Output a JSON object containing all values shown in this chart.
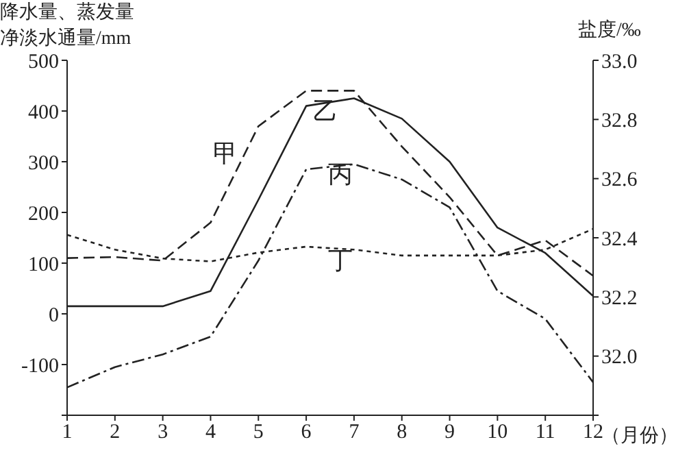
{
  "chart_data": {
    "type": "line",
    "ylabel": "降水量、蒸发量净淡水通量/mm",
    "y2label": "盐度/‰",
    "xlabel": "（月份）",
    "x": [
      1,
      2,
      3,
      4,
      5,
      6,
      7,
      8,
      9,
      10,
      11,
      12
    ],
    "series": [
      {
        "name": "甲",
        "color": "#222222",
        "line_style": "dashed",
        "values": [
          110,
          112,
          105,
          180,
          370,
          440,
          440,
          330,
          230,
          115,
          145,
          75
        ]
      },
      {
        "name": "乙",
        "color": "#222222",
        "line_style": "solid",
        "values": [
          15,
          15,
          15,
          45,
          225,
          410,
          425,
          385,
          300,
          170,
          120,
          35
        ]
      },
      {
        "name": "丙",
        "color": "#222222",
        "line_style": "dashdot",
        "values": [
          -145,
          -105,
          -80,
          -45,
          105,
          285,
          295,
          265,
          210,
          45,
          -10,
          -135
        ]
      },
      {
        "name": "丁",
        "color": "#222222",
        "line_style": "dotted",
        "axis": "y2",
        "values": [
          32.41,
          32.36,
          32.33,
          32.32,
          32.35,
          32.37,
          32.36,
          32.34,
          32.34,
          32.34,
          32.36,
          32.43
        ]
      }
    ],
    "xlim": [
      1,
      12
    ],
    "xticks": [
      1,
      2,
      3,
      4,
      5,
      6,
      7,
      8,
      9,
      10,
      11,
      12
    ],
    "ylim": [
      -200,
      500
    ],
    "yticks": [
      {
        "value": -200,
        "label": null
      },
      -100,
      0,
      100,
      200,
      300,
      400,
      500
    ],
    "y2lim": [
      31.8,
      33.0
    ],
    "y2ticks": [
      {
        "value": 31.8,
        "label": null
      },
      {
        "value": 32.0,
        "label": "32.0"
      },
      32.2,
      32.4,
      32.6,
      32.8,
      {
        "value": 33.0,
        "label": "33.0"
      }
    ],
    "grid": false,
    "legend": false,
    "marker": "none"
  }
}
